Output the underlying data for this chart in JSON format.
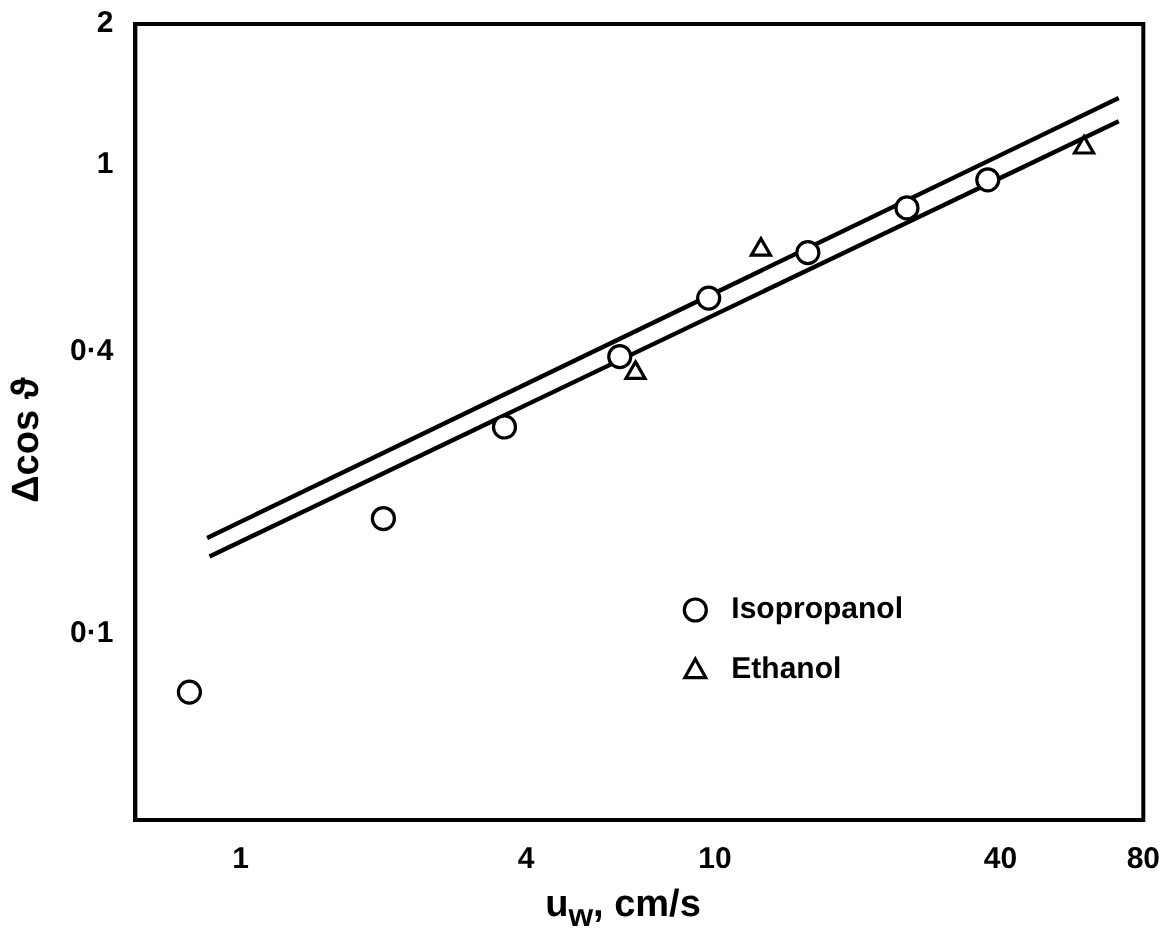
{
  "chart_data": {
    "type": "scatter",
    "xlabel": "u$_{w}$, cm/s",
    "ylabel": "Δcos ϑ",
    "log": "xy",
    "xlim": [
      0.6,
      80
    ],
    "xticks": [
      1,
      4,
      10,
      40,
      80
    ],
    "ylim": [
      0.04,
      2
    ],
    "yticks": [
      {
        "value": 0.1,
        "label": "0·1"
      },
      {
        "value": 0.4,
        "label": "0·4"
      },
      1,
      2
    ],
    "legend": "bottom right",
    "series": [
      {
        "name": "Isopropanol",
        "type": "scatter",
        "marker": "circle",
        "color": "#000000",
        "x": [
          0.78,
          2.0,
          3.6,
          6.3,
          9.7,
          15.7,
          25.4,
          37.6
        ],
        "values": [
          0.075,
          0.176,
          0.276,
          0.39,
          0.52,
          0.65,
          0.81,
          0.93
        ]
      },
      {
        "name": "Ethanol",
        "type": "scatter",
        "marker": "triangle",
        "color": "#000000",
        "x": [
          6.8,
          12.5,
          60
        ],
        "values": [
          0.36,
          0.66,
          1.09
        ]
      },
      {
        "type": "line",
        "marker": "none",
        "color": "#000000",
        "x": [
          0.85,
          71
        ],
        "values": [
          0.16,
          1.39
        ]
      },
      {
        "type": "line",
        "marker": "none",
        "color": "#000000",
        "x": [
          0.86,
          71
        ],
        "values": [
          0.146,
          1.24
        ]
      }
    ]
  }
}
